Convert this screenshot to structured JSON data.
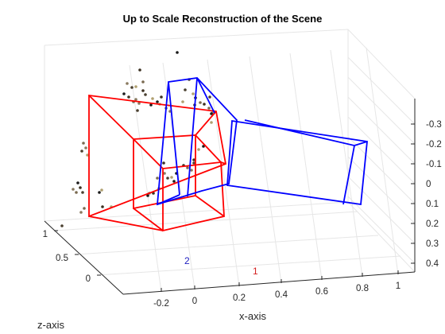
{
  "chart_data": {
    "type": "scatter",
    "title": "Up to Scale Reconstruction of the Scene",
    "xlabel": "x-axis",
    "ylabel": "",
    "zlabel": "z-axis",
    "x_ticks": [
      "-0.2",
      "0",
      "0.2",
      "0.4",
      "0.6",
      "0.8",
      "1"
    ],
    "y_ticks": [
      "-0.3",
      "-0.2",
      "-0.1",
      "0",
      "0.1",
      "0.2",
      "0.3",
      "0.4"
    ],
    "z_ticks": [
      "1",
      "0.5",
      "0"
    ],
    "grid": true,
    "cameras": [
      {
        "id": "1",
        "color": "#ff0000"
      },
      {
        "id": "2",
        "color": "#0000ff"
      }
    ],
    "point_cloud": {
      "colors": [
        "#1a1a1a",
        "#3b3020",
        "#7a6a50",
        "#8a7a60",
        "#4a4030",
        "#b0a070"
      ],
      "approx_count": 70
    }
  }
}
